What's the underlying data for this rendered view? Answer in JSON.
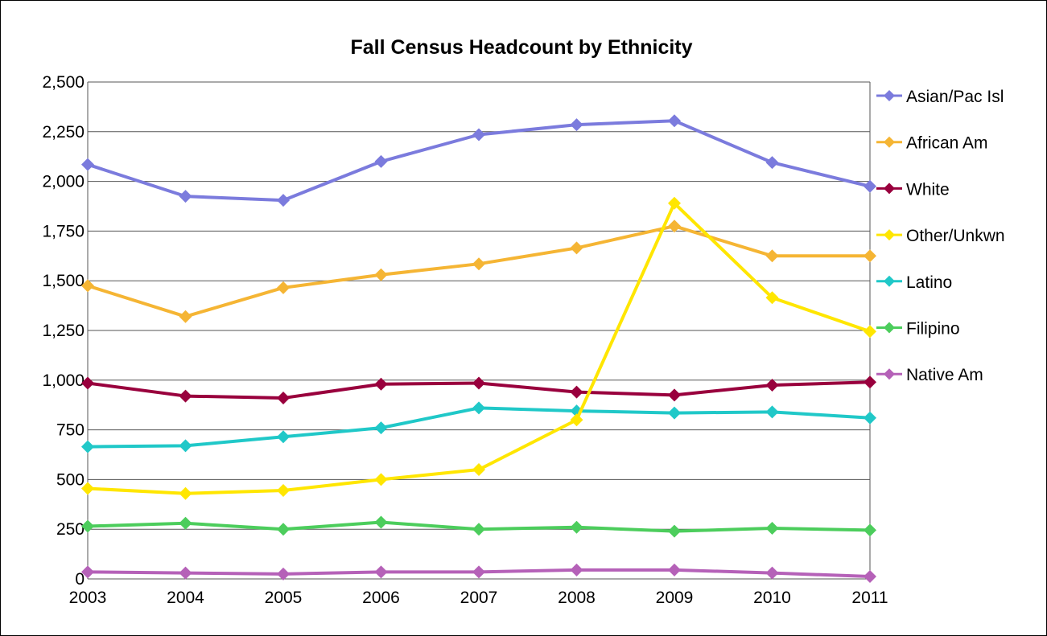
{
  "chart_data": {
    "type": "line",
    "title": "Fall Census Headcount by Ethnicity",
    "xlabel": "",
    "ylabel": "",
    "categories": [
      "2003",
      "2004",
      "2005",
      "2006",
      "2007",
      "2008",
      "2009",
      "2010",
      "2011"
    ],
    "ylim": [
      0,
      2500
    ],
    "yticks": [
      0,
      250,
      500,
      750,
      1000,
      1250,
      1500,
      1750,
      2000,
      2250,
      2500
    ],
    "ytick_labels": [
      "0",
      "250",
      "500",
      "750",
      "1,000",
      "1,250",
      "1,500",
      "1,750",
      "2,000",
      "2,250",
      "2,500"
    ],
    "grid": "horizontal",
    "legend_position": "right",
    "series": [
      {
        "name": "Asian/Pac Isl",
        "color": "#7b7bdd",
        "values": [
          2085,
          1925,
          1905,
          2100,
          2235,
          2285,
          2305,
          2095,
          1975
        ]
      },
      {
        "name": "African Am",
        "color": "#f5b534",
        "values": [
          1475,
          1320,
          1465,
          1530,
          1585,
          1665,
          1775,
          1625,
          1625
        ]
      },
      {
        "name": "White",
        "color": "#99003d",
        "values": [
          985,
          920,
          910,
          980,
          985,
          940,
          925,
          975,
          990
        ]
      },
      {
        "name": "Other/Unkwn",
        "color": "#ffe600",
        "values": [
          455,
          430,
          445,
          500,
          550,
          800,
          1890,
          1415,
          1245
        ]
      },
      {
        "name": "Latino",
        "color": "#20c8c8",
        "values": [
          665,
          670,
          715,
          760,
          860,
          845,
          835,
          840,
          810
        ]
      },
      {
        "name": "Filipino",
        "color": "#4ccd5c",
        "values": [
          265,
          280,
          250,
          285,
          250,
          260,
          240,
          255,
          245
        ]
      },
      {
        "name": "Native Am",
        "color": "#b561b8",
        "values": [
          35,
          30,
          25,
          35,
          35,
          45,
          45,
          30,
          12
        ]
      }
    ]
  }
}
